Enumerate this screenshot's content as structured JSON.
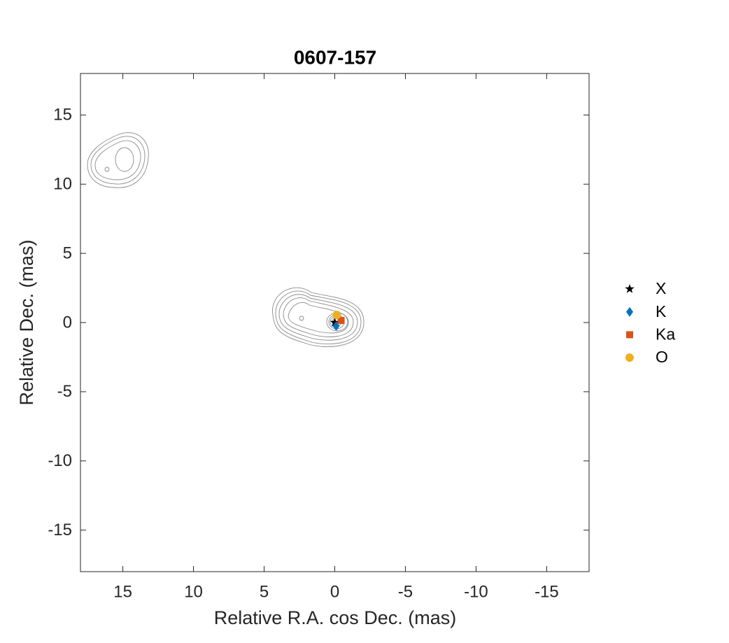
{
  "chart_data": {
    "type": "scatter",
    "title": "0607-157",
    "xlabel": "Relative R.A. cos Dec. (mas)",
    "ylabel": "Relative Dec. (mas)",
    "xlim": [
      18,
      -18
    ],
    "ylim": [
      -18,
      18
    ],
    "xticks": [
      15,
      10,
      5,
      0,
      -5,
      -10,
      -15
    ],
    "yticks": [
      -15,
      -10,
      -5,
      0,
      5,
      10,
      15
    ],
    "series": [
      {
        "name": "X",
        "color": "#000000",
        "marker": "star",
        "x": [
          0
        ],
        "values": [
          0
        ]
      },
      {
        "name": "K",
        "color": "#0072bd",
        "marker": "diamond",
        "x": [
          -0.1
        ],
        "values": [
          -0.25
        ]
      },
      {
        "name": "Ka",
        "color": "#d95319",
        "marker": "square",
        "x": [
          -0.45
        ],
        "values": [
          0.15
        ]
      },
      {
        "name": "O",
        "color": "#edb120",
        "marker": "circle",
        "x": [
          -0.15
        ],
        "values": [
          0.55
        ]
      }
    ]
  }
}
